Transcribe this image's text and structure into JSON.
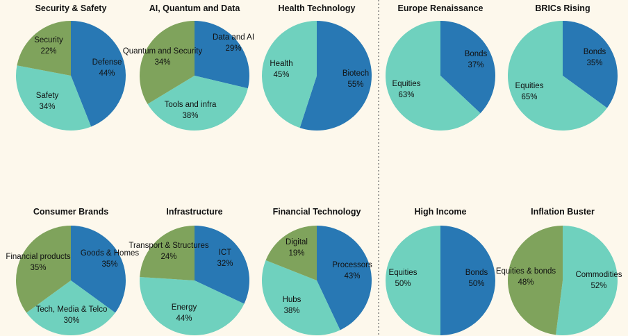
{
  "colors": {
    "background": "#fdf8ec",
    "dark_blue": "#2878b4",
    "teal": "#6fd1be",
    "olive": "#7fa35c",
    "divider": "#666666"
  },
  "chart_data": [
    {
      "type": "pie",
      "title": "Security & Safety",
      "slices": [
        {
          "name": "Defense",
          "value": 44,
          "label": "44%",
          "color": "#2878b4"
        },
        {
          "name": "Safety",
          "value": 34,
          "label": "34%",
          "color": "#6fd1be"
        },
        {
          "name": "Security",
          "value": 22,
          "label": "22%",
          "color": "#7fa35c"
        }
      ]
    },
    {
      "type": "pie",
      "title": "AI, Quantum and Data",
      "slices": [
        {
          "name": "Data and AI",
          "value": 29,
          "label": "29%",
          "color": "#2878b4"
        },
        {
          "name": "Tools and infra",
          "value": 38,
          "label": "38%",
          "color": "#6fd1be"
        },
        {
          "name": "Quantum and Security",
          "value": 34,
          "label": "34%",
          "color": "#7fa35c"
        }
      ]
    },
    {
      "type": "pie",
      "title": "Health Technology",
      "slices": [
        {
          "name": "Biotech",
          "value": 55,
          "label": "55%",
          "color": "#2878b4"
        },
        {
          "name": "Health",
          "value": 45,
          "label": "45%",
          "color": "#6fd1be"
        }
      ]
    },
    {
      "type": "pie",
      "title": "Europe Renaissance",
      "slices": [
        {
          "name": "Bonds",
          "value": 37,
          "label": "37%",
          "color": "#2878b4"
        },
        {
          "name": "Equities",
          "value": 63,
          "label": "63%",
          "color": "#6fd1be"
        }
      ]
    },
    {
      "type": "pie",
      "title": "BRICs Rising",
      "slices": [
        {
          "name": "Bonds",
          "value": 35,
          "label": "35%",
          "color": "#2878b4"
        },
        {
          "name": "Equities",
          "value": 65,
          "label": "65%",
          "color": "#6fd1be"
        }
      ]
    },
    {
      "type": "pie",
      "title": "Consumer Brands",
      "slices": [
        {
          "name": "Goods & Homes",
          "value": 35,
          "label": "35%",
          "color": "#2878b4"
        },
        {
          "name": "Tech, Media & Telco",
          "value": 30,
          "label": "30%",
          "color": "#6fd1be"
        },
        {
          "name": "Financial products",
          "value": 35,
          "label": "35%",
          "color": "#7fa35c"
        }
      ]
    },
    {
      "type": "pie",
      "title": "Infrastructure",
      "slices": [
        {
          "name": "ICT",
          "value": 32,
          "label": "32%",
          "color": "#2878b4"
        },
        {
          "name": "Energy",
          "value": 44,
          "label": "44%",
          "color": "#6fd1be"
        },
        {
          "name": "Transport & Structures",
          "value": 24,
          "label": "24%",
          "color": "#7fa35c"
        }
      ]
    },
    {
      "type": "pie",
      "title": "Financial Technology",
      "slices": [
        {
          "name": "Processors",
          "value": 43,
          "label": "43%",
          "color": "#2878b4"
        },
        {
          "name": "Hubs",
          "value": 38,
          "label": "38%",
          "color": "#6fd1be"
        },
        {
          "name": "Digital",
          "value": 19,
          "label": "19%",
          "color": "#7fa35c"
        }
      ]
    },
    {
      "type": "pie",
      "title": "High Income",
      "slices": [
        {
          "name": "Bonds",
          "value": 50,
          "label": "50%",
          "color": "#2878b4"
        },
        {
          "name": "Equities",
          "value": 50,
          "label": "50%",
          "color": "#6fd1be"
        }
      ]
    },
    {
      "type": "pie",
      "title": "Inflation Buster",
      "slices": [
        {
          "name": "Commodities",
          "value": 52,
          "label": "52%",
          "color": "#6fd1be"
        },
        {
          "name": "Equities & bonds",
          "value": 48,
          "label": "48%",
          "color": "#7fa35c"
        }
      ]
    }
  ]
}
